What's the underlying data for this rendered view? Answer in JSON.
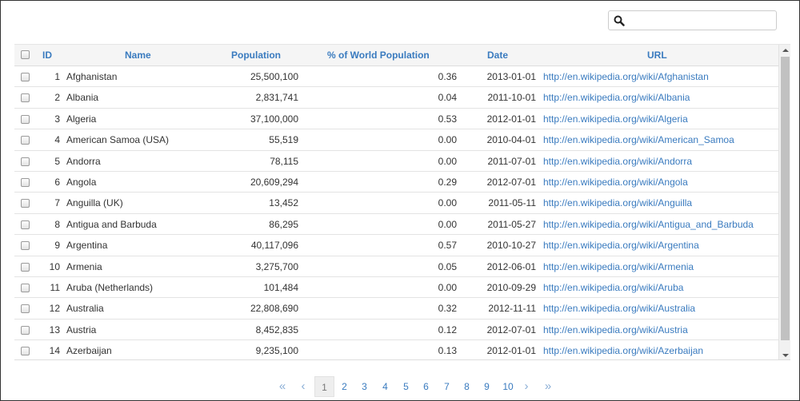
{
  "search": {
    "placeholder": "",
    "value": "",
    "icon": "search-icon"
  },
  "table": {
    "columns": [
      "ID",
      "Name",
      "Population",
      "% of World Population",
      "Date",
      "URL"
    ],
    "rows": [
      {
        "id": "1",
        "name": "Afghanistan",
        "population": "25,500,100",
        "pct": "0.36",
        "date": "2013-01-01",
        "url": "http://en.wikipedia.org/wiki/Afghanistan"
      },
      {
        "id": "2",
        "name": "Albania",
        "population": "2,831,741",
        "pct": "0.04",
        "date": "2011-10-01",
        "url": "http://en.wikipedia.org/wiki/Albania"
      },
      {
        "id": "3",
        "name": "Algeria",
        "population": "37,100,000",
        "pct": "0.53",
        "date": "2012-01-01",
        "url": "http://en.wikipedia.org/wiki/Algeria"
      },
      {
        "id": "4",
        "name": "American Samoa (USA)",
        "population": "55,519",
        "pct": "0.00",
        "date": "2010-04-01",
        "url": "http://en.wikipedia.org/wiki/American_Samoa"
      },
      {
        "id": "5",
        "name": "Andorra",
        "population": "78,115",
        "pct": "0.00",
        "date": "2011-07-01",
        "url": "http://en.wikipedia.org/wiki/Andorra"
      },
      {
        "id": "6",
        "name": "Angola",
        "population": "20,609,294",
        "pct": "0.29",
        "date": "2012-07-01",
        "url": "http://en.wikipedia.org/wiki/Angola"
      },
      {
        "id": "7",
        "name": "Anguilla (UK)",
        "population": "13,452",
        "pct": "0.00",
        "date": "2011-05-11",
        "url": "http://en.wikipedia.org/wiki/Anguilla"
      },
      {
        "id": "8",
        "name": "Antigua and Barbuda",
        "population": "86,295",
        "pct": "0.00",
        "date": "2011-05-27",
        "url": "http://en.wikipedia.org/wiki/Antigua_and_Barbuda"
      },
      {
        "id": "9",
        "name": "Argentina",
        "population": "40,117,096",
        "pct": "0.57",
        "date": "2010-10-27",
        "url": "http://en.wikipedia.org/wiki/Argentina"
      },
      {
        "id": "10",
        "name": "Armenia",
        "population": "3,275,700",
        "pct": "0.05",
        "date": "2012-06-01",
        "url": "http://en.wikipedia.org/wiki/Armenia"
      },
      {
        "id": "11",
        "name": "Aruba (Netherlands)",
        "population": "101,484",
        "pct": "0.00",
        "date": "2010-09-29",
        "url": "http://en.wikipedia.org/wiki/Aruba"
      },
      {
        "id": "12",
        "name": "Australia",
        "population": "22,808,690",
        "pct": "0.32",
        "date": "2012-11-11",
        "url": "http://en.wikipedia.org/wiki/Australia"
      },
      {
        "id": "13",
        "name": "Austria",
        "population": "8,452,835",
        "pct": "0.12",
        "date": "2012-07-01",
        "url": "http://en.wikipedia.org/wiki/Austria"
      },
      {
        "id": "14",
        "name": "Azerbaijan",
        "population": "9,235,100",
        "pct": "0.13",
        "date": "2012-01-01",
        "url": "http://en.wikipedia.org/wiki/Azerbaijan"
      }
    ]
  },
  "pagination": {
    "first": "«",
    "prev": "‹",
    "pages": [
      "1",
      "2",
      "3",
      "4",
      "5",
      "6",
      "7",
      "8",
      "9",
      "10"
    ],
    "active_page": "1",
    "next": "›",
    "last": "»"
  },
  "colors": {
    "link": "#3a7bbf",
    "header_bg": "#f5f5f5",
    "active_page_bg": "#eeeeee"
  }
}
